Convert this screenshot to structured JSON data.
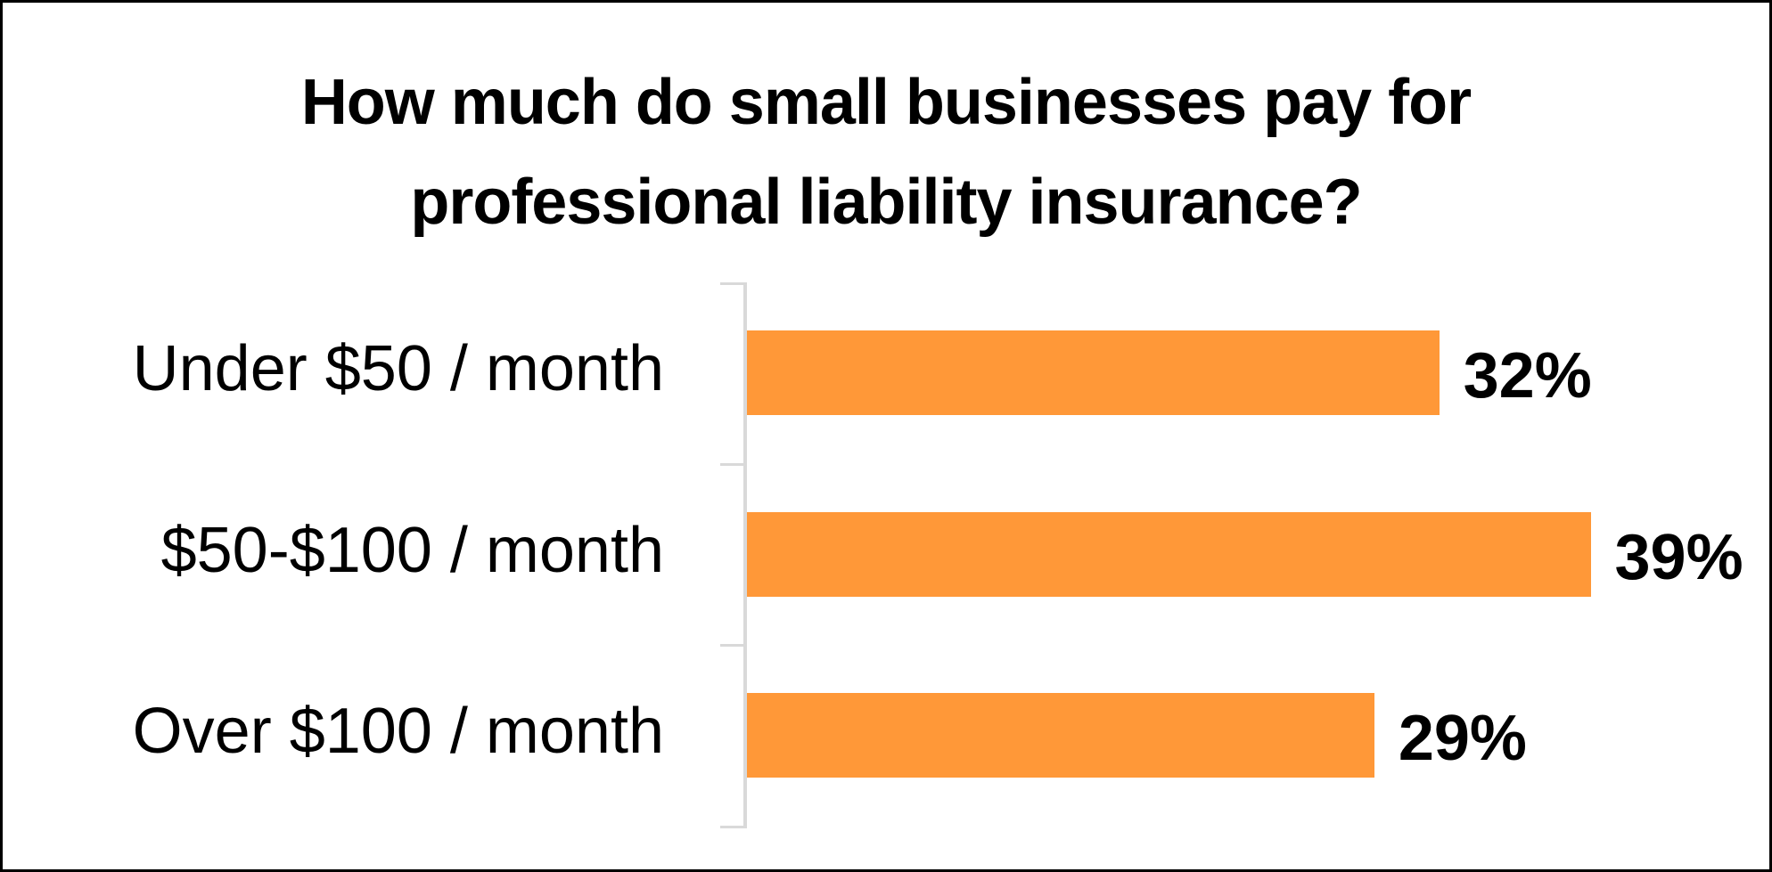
{
  "chart_data": {
    "type": "bar",
    "orientation": "horizontal",
    "title": "How much do small businesses pay for professional liability insurance?",
    "title_lines": [
      "How much do small businesses pay for",
      "professional liability insurance?"
    ],
    "categories": [
      "Under $50 / month",
      "$50-$100 / month",
      "Over $100 / month"
    ],
    "values": [
      32,
      39,
      29
    ],
    "value_labels": [
      "32%",
      "39%",
      "29%"
    ],
    "unit": "%",
    "xlabel": "",
    "ylabel": "",
    "xlim": [
      0,
      40
    ],
    "grid": false,
    "legend": null,
    "bar_color": "#FF9838",
    "axis_color": "#D9D9D9"
  }
}
